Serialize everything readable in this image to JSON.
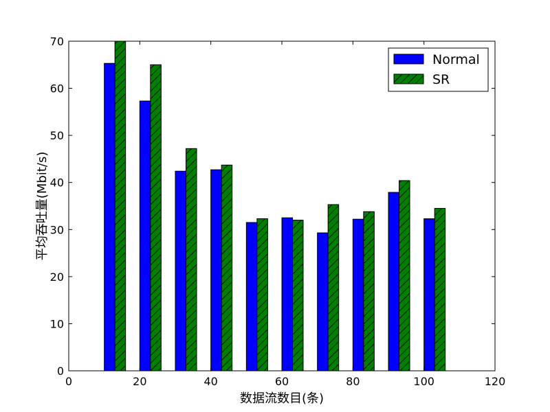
{
  "chart_data": {
    "type": "bar",
    "xlabel": "数据流数目(条)",
    "ylabel": "平均吞吐量(Mbit/s)",
    "xlim": [
      0,
      120
    ],
    "ylim": [
      0,
      70
    ],
    "xticks": [
      0,
      20,
      40,
      60,
      80,
      100,
      120
    ],
    "yticks": [
      0,
      10,
      20,
      30,
      40,
      50,
      60,
      70
    ],
    "x": [
      10,
      20,
      30,
      40,
      50,
      60,
      70,
      80,
      90,
      100
    ],
    "bar_width": 3,
    "grid": false,
    "legend_position": "top-right",
    "series": [
      {
        "name": "Normal",
        "color": "#0000ff",
        "hatch": "none",
        "values": [
          65.3,
          57.3,
          42.4,
          42.7,
          31.5,
          32.5,
          29.3,
          32.2,
          37.9,
          32.3
        ]
      },
      {
        "name": "SR",
        "color": "#008000",
        "hatch": "diagonal",
        "values": [
          70.0,
          65.0,
          47.2,
          43.7,
          32.3,
          32.0,
          35.3,
          33.8,
          40.4,
          34.5
        ]
      }
    ]
  }
}
